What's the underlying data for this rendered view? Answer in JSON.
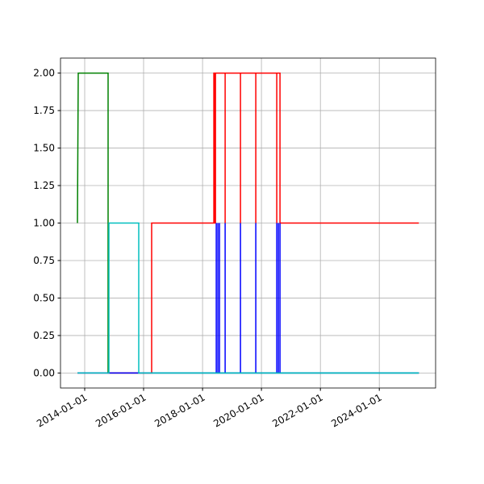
{
  "chart_data": {
    "type": "line",
    "xlim": [
      "2013-03-07",
      "2025-11-29"
    ],
    "ylim": [
      -0.1,
      2.1
    ],
    "xticks": [
      "2014-01-01",
      "2016-01-01",
      "2018-01-01",
      "2020-01-01",
      "2022-01-01",
      "2024-01-01"
    ],
    "yticks": [
      {
        "value": 0,
        "label": "0.00"
      },
      {
        "value": 0.25,
        "label": "0.25"
      },
      {
        "value": 0.5,
        "label": "0.50"
      },
      {
        "value": 0.75,
        "label": "0.75"
      },
      {
        "value": 1,
        "label": "1.00"
      },
      {
        "value": 1.25,
        "label": "1.25"
      },
      {
        "value": 1.5,
        "label": "1.50"
      },
      {
        "value": 1.75,
        "label": "1.75"
      },
      {
        "value": 2,
        "label": "2.00"
      }
    ],
    "grid": true,
    "series": [
      {
        "color": "#008000",
        "x": [
          "2013-10-03",
          "2013-10-13",
          "2014-10-18",
          "2014-10-18",
          "2025-05-05"
        ],
        "values": [
          1,
          2,
          2,
          0,
          0
        ]
      },
      {
        "color": "#ff0000",
        "x": [
          "2013-10-03",
          "2016-04-10",
          "2016-04-10",
          "2018-05-21",
          "2018-05-21",
          "2018-05-31",
          "2018-05-31",
          "2018-06-10",
          "2018-06-10",
          "2018-10-08",
          "2018-10-08",
          "2018-10-08",
          "2019-04-16",
          "2019-04-16",
          "2019-04-16",
          "2019-10-23",
          "2019-10-23",
          "2019-10-23",
          "2020-07-09",
          "2020-07-09",
          "2020-07-09",
          "2020-08-18",
          "2020-08-18",
          "2025-05-05"
        ],
        "values": [
          0,
          0,
          1,
          1,
          2,
          2,
          1,
          1,
          2,
          2,
          1,
          2,
          2,
          1,
          2,
          2,
          1,
          2,
          2,
          1,
          2,
          2,
          1,
          1
        ]
      },
      {
        "color": "#0000ff",
        "x": [
          "2013-10-03",
          "2018-06-20",
          "2018-06-20",
          "2018-06-20",
          "2018-07-10",
          "2018-07-10",
          "2018-07-10",
          "2018-07-30",
          "2018-07-30",
          "2018-07-30",
          "2018-10-08",
          "2018-10-08",
          "2018-10-08",
          "2019-04-16",
          "2019-04-16",
          "2019-04-16",
          "2019-10-23",
          "2019-10-23",
          "2019-10-23",
          "2020-07-09",
          "2020-07-09",
          "2020-07-09",
          "2020-07-29",
          "2020-07-29",
          "2020-07-29",
          "2020-08-18",
          "2020-08-18",
          "2020-08-18",
          "2025-05-05"
        ],
        "values": [
          0,
          0,
          1,
          0,
          0,
          1,
          0,
          0,
          1,
          0,
          0,
          1,
          0,
          0,
          1,
          0,
          0,
          1,
          0,
          0,
          1,
          0,
          0,
          1,
          0,
          0,
          1,
          0,
          0
        ]
      },
      {
        "color": "#00bfbf",
        "x": [
          "2013-10-03",
          "2014-10-28",
          "2014-10-28",
          "2014-11-17",
          "2014-11-17",
          "2015-11-02",
          "2015-11-02",
          "2025-05-05"
        ],
        "values": [
          0,
          0,
          1,
          1,
          1,
          1,
          0,
          0
        ]
      }
    ]
  }
}
